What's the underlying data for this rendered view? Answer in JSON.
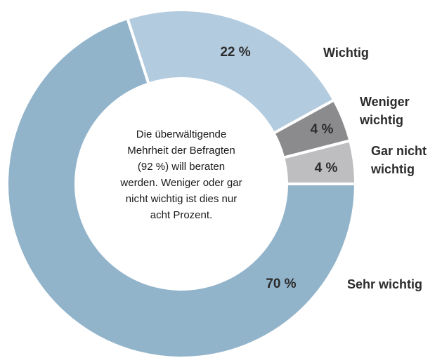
{
  "chart_data": {
    "type": "donut",
    "categories": [
      "Sehr wichtig",
      "Wichtig",
      "Weniger\nwichtig",
      "Gar nicht\nwichtig"
    ],
    "values": [
      70,
      22,
      4,
      4
    ],
    "value_labels": [
      "70 %",
      "22 %",
      "4 %",
      "4 %"
    ],
    "colors": [
      "#92b4cb",
      "#b3cbde",
      "#8b8b8d",
      "#bebec0"
    ],
    "annotation": "Die überwältigende\nMehrheit der Befragten\n(92 %) will beraten\nwerden. Weniger oder gar\nnicht wichtig ist dies nur\nacht Prozent."
  }
}
